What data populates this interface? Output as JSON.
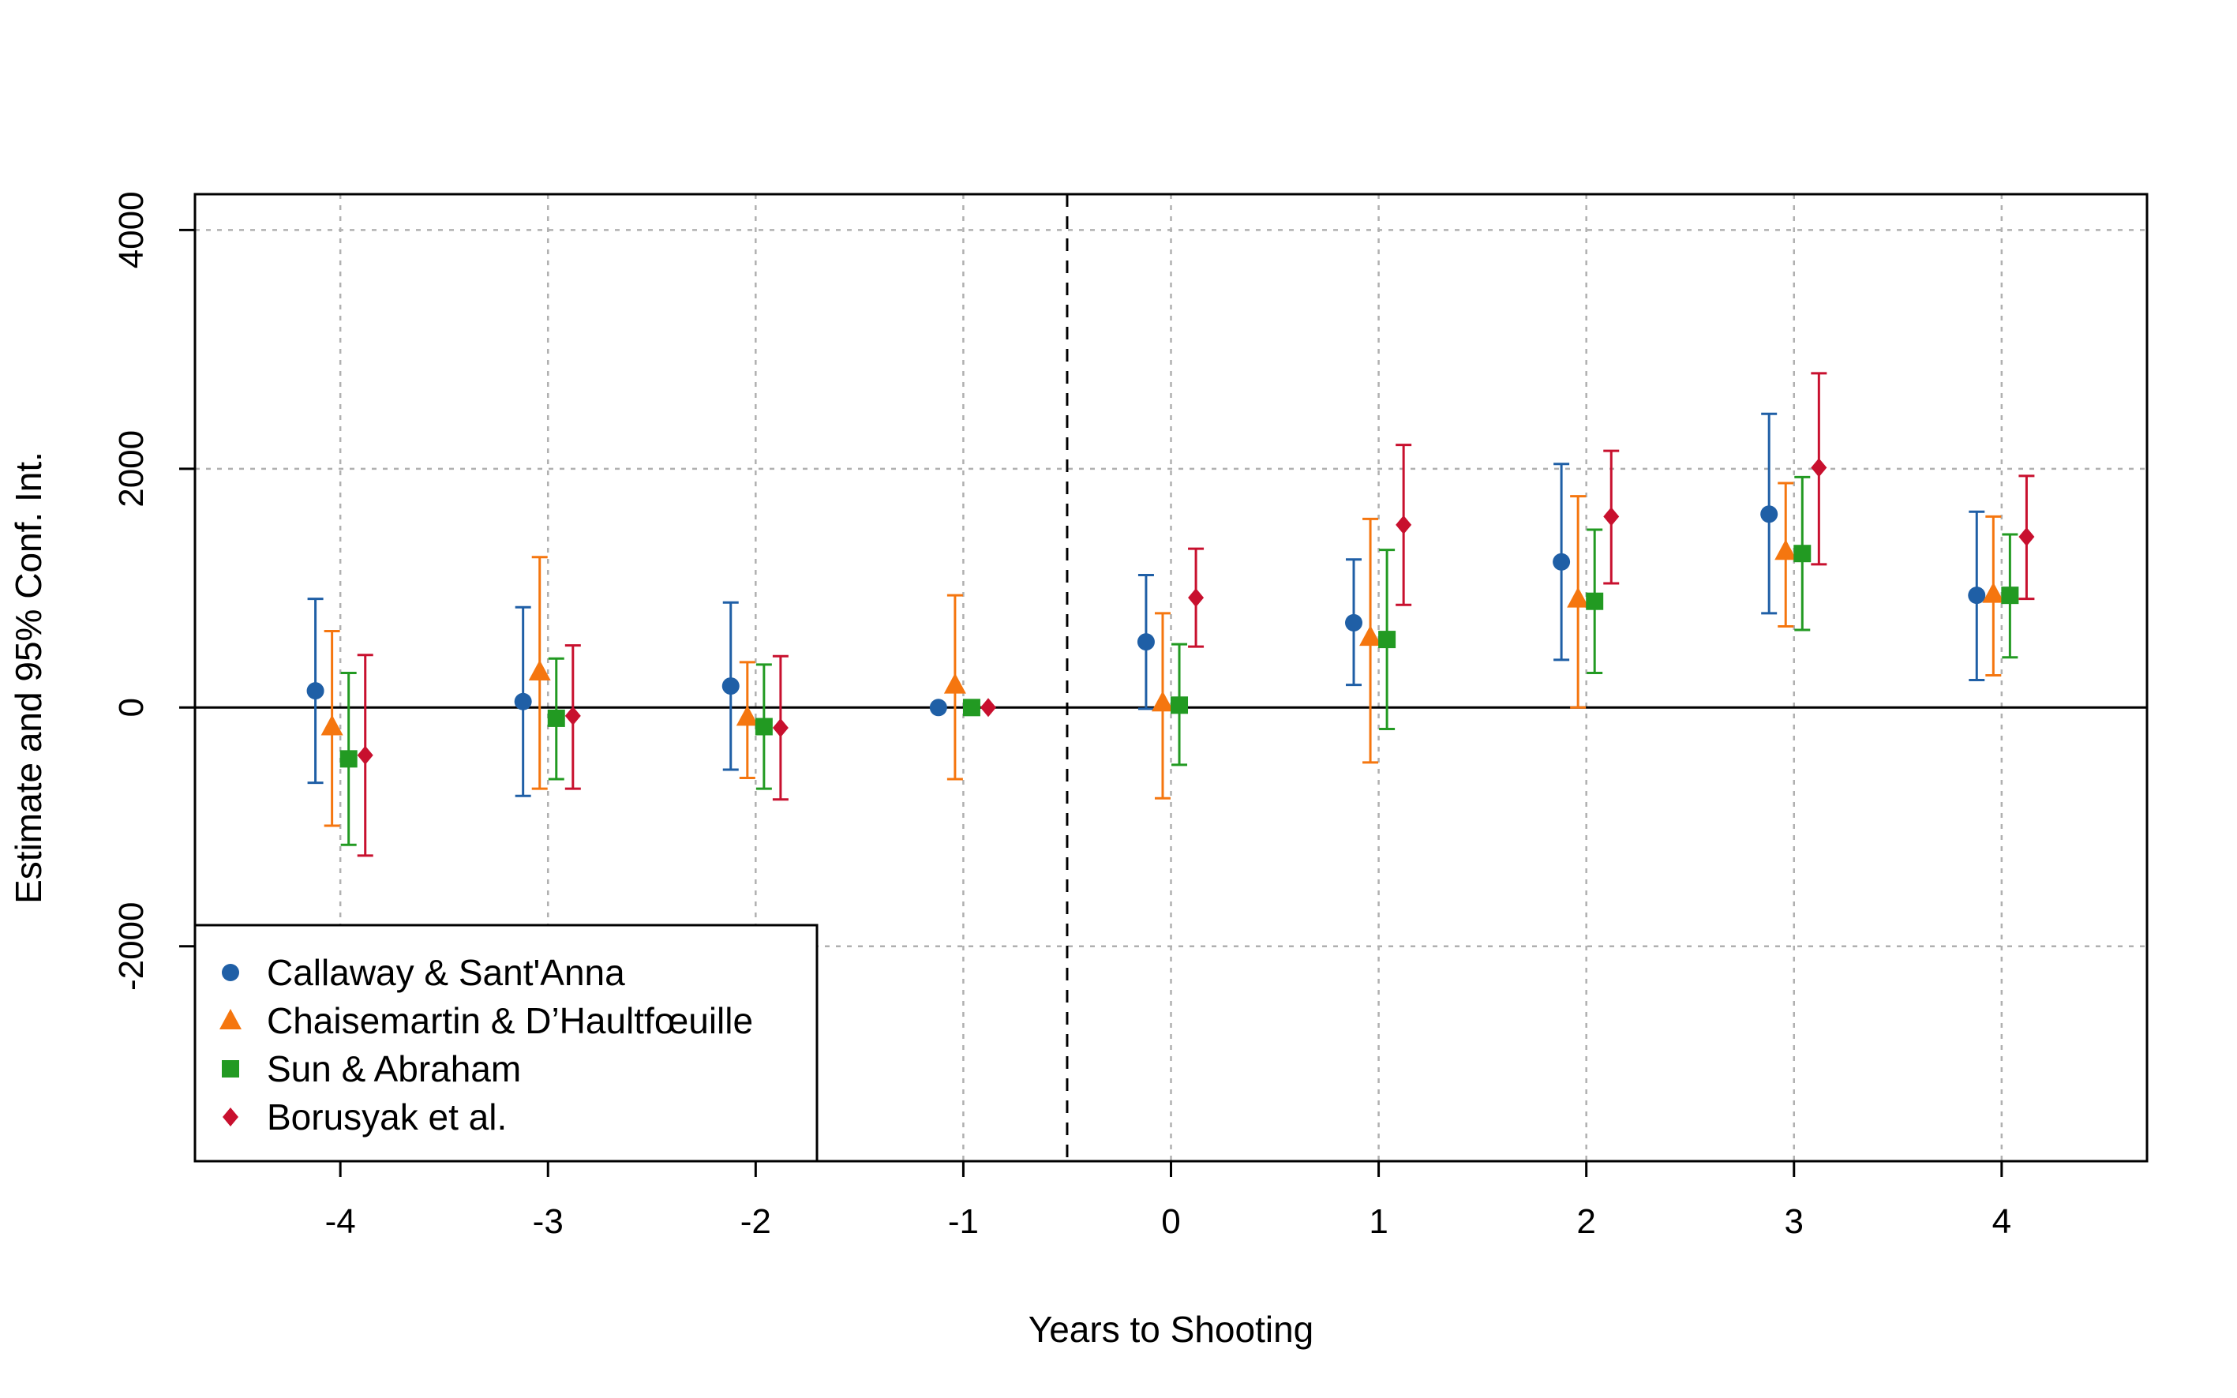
{
  "chart_data": {
    "type": "scatter",
    "xlabel": "Years to Shooting",
    "ylabel": "Estimate and 95% Conf. Int.",
    "xlim": [
      -4.7,
      4.7
    ],
    "ylim": [
      -3800,
      4300
    ],
    "categories": [
      -4,
      -3,
      -2,
      -1,
      0,
      1,
      2,
      3,
      4
    ],
    "x_ticks": [
      "-4",
      "-3",
      "-2",
      "-1",
      "0",
      "1",
      "2",
      "3",
      "4"
    ],
    "y_ticks": [
      "-2000",
      "0",
      "2000",
      "4000"
    ],
    "y_tick_values": [
      -2000,
      0,
      2000,
      4000
    ],
    "grid": true,
    "treatment_line_x": -0.5,
    "zero_line": 0,
    "legend_position": "bottom-left",
    "series": [
      {
        "name": "Callaway & Sant'Anna",
        "marker": "circle",
        "color": "#1f5fa6",
        "offset": -0.12,
        "estimates": [
          140,
          50,
          180,
          0,
          550,
          710,
          1220,
          1620,
          940
        ],
        "lower": [
          -630,
          -740,
          -520,
          null,
          -10,
          190,
          400,
          790,
          230
        ],
        "upper": [
          910,
          840,
          880,
          null,
          1110,
          1240,
          2040,
          2460,
          1640
        ]
      },
      {
        "name": "Chaisemartin & D’Haultfœuille",
        "marker": "triangle",
        "color": "#f5760f",
        "offset": -0.04,
        "estimates": [
          -160,
          300,
          -80,
          190,
          40,
          590,
          910,
          1310,
          950
        ],
        "lower": [
          -990,
          -680,
          -590,
          -600,
          -760,
          -460,
          0,
          680,
          270
        ],
        "upper": [
          640,
          1260,
          380,
          940,
          790,
          1580,
          1770,
          1880,
          1600
        ]
      },
      {
        "name": "Sun & Abraham",
        "marker": "square",
        "color": "#229a22",
        "offset": 0.04,
        "estimates": [
          -430,
          -90,
          -160,
          0,
          20,
          570,
          890,
          1290,
          940
        ],
        "lower": [
          -1150,
          -600,
          -680,
          null,
          -480,
          -180,
          290,
          650,
          420
        ],
        "upper": [
          290,
          410,
          360,
          null,
          530,
          1320,
          1490,
          1930,
          1450
        ]
      },
      {
        "name": "Borusyak et al.",
        "marker": "diamond",
        "color": "#c8102e",
        "offset": 0.12,
        "estimates": [
          -400,
          -70,
          -170,
          0,
          920,
          1530,
          1600,
          2010,
          1430
        ],
        "lower": [
          -1240,
          -680,
          -770,
          null,
          510,
          860,
          1040,
          1200,
          910
        ],
        "upper": [
          440,
          520,
          430,
          null,
          1330,
          2200,
          2150,
          2800,
          1940
        ]
      }
    ]
  }
}
